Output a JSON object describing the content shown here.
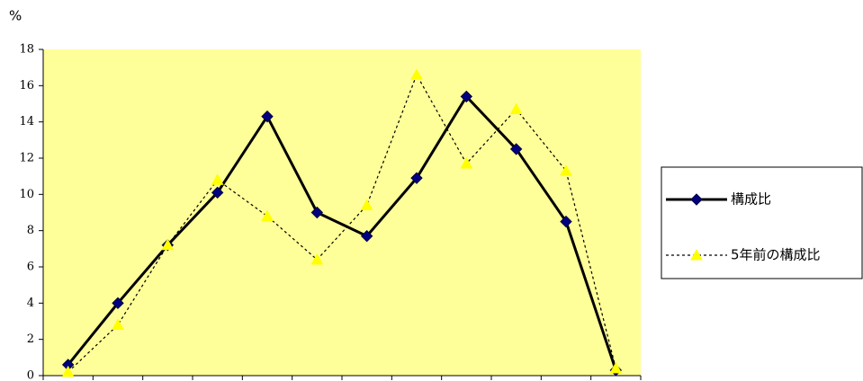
{
  "chart_data": {
    "type": "line",
    "y_label": "%",
    "categories": [
      null,
      null,
      null,
      null,
      null,
      null,
      null,
      null,
      null,
      null,
      null,
      null
    ],
    "series": [
      {
        "name": "構成比",
        "color": "#000080",
        "line_color": "#000000",
        "line_style": "solid",
        "marker": "diamond",
        "values": [
          0.6,
          4.0,
          7.2,
          10.1,
          14.3,
          9.0,
          7.7,
          10.9,
          15.4,
          12.5,
          8.5,
          0.3
        ]
      },
      {
        "name": "5年前の構成比",
        "color": "#ffff00",
        "line_color": "#000000",
        "line_style": "dotted",
        "marker": "triangle",
        "values": [
          0.2,
          2.8,
          7.2,
          10.8,
          8.8,
          6.4,
          9.4,
          16.6,
          11.7,
          14.7,
          11.3,
          0.4
        ]
      }
    ],
    "ylim": [
      0,
      18
    ],
    "yticks": [
      0,
      2,
      4,
      6,
      8,
      10,
      12,
      14,
      16,
      18
    ],
    "grid": false,
    "legend": "right",
    "plot_background": "#ffff99"
  }
}
